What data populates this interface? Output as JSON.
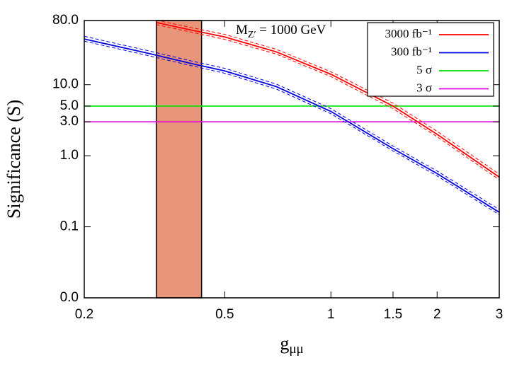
{
  "chart_data": {
    "type": "line",
    "x_label": {
      "base": "g",
      "subscript": "μμ"
    },
    "y_label": "Significance (S)",
    "annotation": {
      "base": "M",
      "subscript": "Z′",
      "rest": " = 1000 GeV"
    },
    "xscale": "log",
    "yscale": "log",
    "xlim": [
      0.2,
      3
    ],
    "ylim": [
      0.01,
      80
    ],
    "xticks": [
      0.2,
      0.5,
      1,
      1.5,
      2,
      3
    ],
    "yticks": [
      {
        "value": 0.01,
        "label": "0.0"
      },
      {
        "value": 0.1,
        "label": "0.1"
      },
      {
        "value": 1,
        "label": "1.0"
      },
      {
        "value": 3,
        "label": "3.0"
      },
      {
        "value": 5,
        "label": "5.0"
      },
      {
        "value": 10,
        "label": "10.0"
      },
      {
        "value": 80,
        "label": "80.0"
      }
    ],
    "legend_position": "upper right",
    "shaded_region": {
      "x": [
        0.32,
        0.43
      ],
      "color": "#e8967a"
    },
    "series": [
      {
        "name": "3000 fb⁻¹",
        "color": "#ff0000",
        "x": [
          0.32,
          0.4,
          0.5,
          0.7,
          1,
          1.5,
          2,
          3
        ],
        "values": [
          75,
          59,
          47,
          29,
          14,
          5.0,
          2.0,
          0.5
        ],
        "upper": [
          81,
          64,
          51,
          31.5,
          15.2,
          5.5,
          2.2,
          0.55
        ],
        "lower": [
          70,
          55,
          43.5,
          27,
          13,
          4.6,
          1.85,
          0.46
        ]
      },
      {
        "name": "300 fb⁻¹",
        "color": "#0000e0",
        "x": [
          0.2,
          0.3,
          0.4,
          0.5,
          0.7,
          1,
          1.5,
          2,
          3
        ],
        "values": [
          44,
          28,
          20,
          15.6,
          9.4,
          4.2,
          1.26,
          0.56,
          0.16
        ],
        "upper": [
          48,
          30.5,
          21.7,
          17,
          10.2,
          4.6,
          1.37,
          0.61,
          0.175
        ],
        "lower": [
          41,
          26,
          18.6,
          14.5,
          8.7,
          3.9,
          1.17,
          0.52,
          0.148
        ]
      }
    ],
    "hlines": [
      {
        "name": "5 σ",
        "color": "#00e000",
        "value": 5
      },
      {
        "name": "3 σ",
        "color": "#e000e0",
        "value": 3
      }
    ]
  }
}
